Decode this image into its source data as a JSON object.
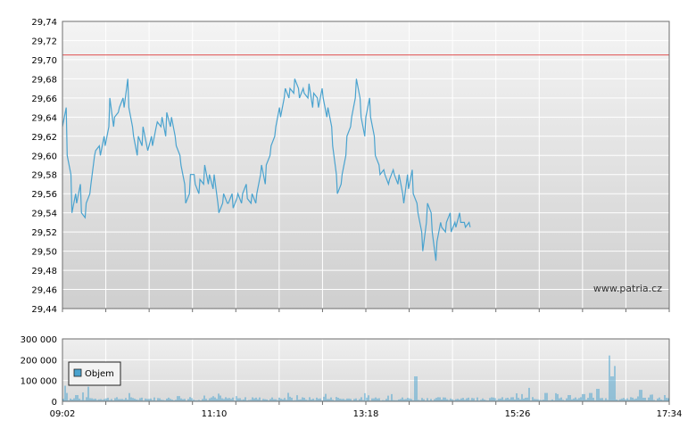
{
  "chart_data": [
    {
      "type": "line",
      "ylim": [
        29.44,
        29.74
      ],
      "y_ticks": [
        "29,74",
        "29,72",
        "29,70",
        "29,68",
        "29,66",
        "29,64",
        "29,62",
        "29,60",
        "29,58",
        "29,56",
        "29,54",
        "29,52",
        "29,50",
        "29,48",
        "29,46",
        "29,44"
      ],
      "reference_line": 29.705,
      "watermark": "www.patria.cz",
      "grid": true,
      "series": [
        {
          "color": "#4aa3cf",
          "points": [
            [
              "09:02",
              29.63
            ],
            [
              "09:04",
              29.65
            ],
            [
              "09:06",
              29.6
            ],
            [
              "09:08",
              29.58
            ],
            [
              "09:10",
              29.54
            ],
            [
              "09:12",
              29.56
            ],
            [
              "09:14",
              29.55
            ],
            [
              "09:16",
              29.57
            ],
            [
              "09:18",
              29.54
            ],
            [
              "09:20",
              29.535
            ],
            [
              "09:22",
              29.55
            ],
            [
              "09:24",
              29.56
            ],
            [
              "09:26",
              29.57
            ],
            [
              "09:28",
              29.6
            ],
            [
              "09:30",
              29.605
            ],
            [
              "09:32",
              29.61
            ],
            [
              "09:34",
              29.6
            ],
            [
              "09:36",
              29.62
            ],
            [
              "09:38",
              29.61
            ],
            [
              "09:40",
              29.63
            ],
            [
              "09:42",
              29.66
            ],
            [
              "09:44",
              29.63
            ],
            [
              "09:46",
              29.64
            ],
            [
              "09:48",
              29.645
            ],
            [
              "09:50",
              29.65
            ],
            [
              "09:52",
              29.66
            ],
            [
              "09:54",
              29.65
            ],
            [
              "09:56",
              29.68
            ],
            [
              "09:58",
              29.65
            ],
            [
              "10:00",
              29.63
            ],
            [
              "10:02",
              29.62
            ],
            [
              "10:04",
              29.6
            ],
            [
              "10:06",
              29.62
            ],
            [
              "10:08",
              29.61
            ],
            [
              "10:10",
              29.63
            ],
            [
              "10:12",
              29.61
            ],
            [
              "10:14",
              29.605
            ],
            [
              "10:16",
              29.62
            ],
            [
              "10:18",
              29.61
            ],
            [
              "10:20",
              29.63
            ],
            [
              "10:22",
              29.635
            ],
            [
              "10:24",
              29.63
            ],
            [
              "10:26",
              29.64
            ],
            [
              "10:28",
              29.62
            ],
            [
              "10:30",
              29.645
            ],
            [
              "10:32",
              29.63
            ],
            [
              "10:34",
              29.64
            ],
            [
              "10:36",
              29.62
            ],
            [
              "10:38",
              29.61
            ],
            [
              "10:40",
              29.6
            ],
            [
              "10:42",
              29.59
            ],
            [
              "10:44",
              29.57
            ],
            [
              "10:46",
              29.55
            ],
            [
              "10:48",
              29.56
            ],
            [
              "10:50",
              29.58
            ],
            [
              "10:52",
              29.58
            ],
            [
              "10:54",
              29.57
            ],
            [
              "10:56",
              29.56
            ],
            [
              "10:58",
              29.575
            ],
            [
              "11:00",
              29.57
            ],
            [
              "11:02",
              29.59
            ],
            [
              "11:04",
              29.57
            ],
            [
              "11:06",
              29.58
            ],
            [
              "11:08",
              29.565
            ],
            [
              "11:10",
              29.58
            ],
            [
              "11:12",
              29.55
            ],
            [
              "11:14",
              29.54
            ],
            [
              "11:16",
              29.55
            ],
            [
              "11:18",
              29.56
            ],
            [
              "11:20",
              29.55
            ],
            [
              "11:22",
              29.55
            ],
            [
              "11:24",
              29.56
            ],
            [
              "11:26",
              29.545
            ],
            [
              "11:28",
              29.555
            ],
            [
              "11:30",
              29.56
            ],
            [
              "11:32",
              29.55
            ],
            [
              "11:34",
              29.56
            ],
            [
              "11:36",
              29.57
            ],
            [
              "11:38",
              29.555
            ],
            [
              "11:40",
              29.55
            ],
            [
              "11:42",
              29.56
            ],
            [
              "11:44",
              29.55
            ],
            [
              "11:46",
              29.56
            ],
            [
              "11:48",
              29.58
            ],
            [
              "11:50",
              29.59
            ],
            [
              "11:52",
              29.57
            ],
            [
              "11:54",
              29.59
            ],
            [
              "11:56",
              29.6
            ],
            [
              "11:58",
              29.61
            ],
            [
              "12:00",
              29.62
            ],
            [
              "12:02",
              29.63
            ],
            [
              "12:04",
              29.65
            ],
            [
              "12:06",
              29.64
            ],
            [
              "12:08",
              29.66
            ],
            [
              "12:10",
              29.67
            ],
            [
              "12:12",
              29.66
            ],
            [
              "12:14",
              29.67
            ],
            [
              "12:16",
              29.665
            ],
            [
              "12:18",
              29.68
            ],
            [
              "12:20",
              29.67
            ],
            [
              "12:22",
              29.66
            ],
            [
              "12:24",
              29.67
            ],
            [
              "12:26",
              29.665
            ],
            [
              "12:28",
              29.66
            ],
            [
              "12:30",
              29.675
            ],
            [
              "12:32",
              29.65
            ],
            [
              "12:34",
              29.665
            ],
            [
              "12:36",
              29.66
            ],
            [
              "12:38",
              29.65
            ],
            [
              "12:40",
              29.67
            ],
            [
              "12:42",
              29.66
            ],
            [
              "12:44",
              29.64
            ],
            [
              "12:46",
              29.65
            ],
            [
              "12:48",
              29.63
            ],
            [
              "12:50",
              29.61
            ],
            [
              "12:52",
              29.58
            ],
            [
              "12:54",
              29.56
            ],
            [
              "12:56",
              29.57
            ],
            [
              "12:58",
              29.58
            ],
            [
              "13:00",
              29.6
            ],
            [
              "13:02",
              29.62
            ],
            [
              "13:04",
              29.63
            ],
            [
              "13:06",
              29.64
            ],
            [
              "13:08",
              29.66
            ],
            [
              "13:10",
              29.68
            ],
            [
              "13:12",
              29.66
            ],
            [
              "13:14",
              29.64
            ],
            [
              "13:16",
              29.62
            ],
            [
              "13:18",
              29.64
            ],
            [
              "13:20",
              29.66
            ],
            [
              "13:22",
              29.64
            ],
            [
              "13:24",
              29.62
            ],
            [
              "13:26",
              29.6
            ],
            [
              "13:28",
              29.59
            ],
            [
              "13:30",
              29.58
            ],
            [
              "13:32",
              29.585
            ],
            [
              "13:34",
              29.58
            ],
            [
              "13:36",
              29.57
            ],
            [
              "13:38",
              29.575
            ],
            [
              "13:40",
              29.585
            ],
            [
              "13:42",
              29.58
            ],
            [
              "13:44",
              29.57
            ],
            [
              "13:46",
              29.58
            ],
            [
              "13:48",
              29.56
            ],
            [
              "13:50",
              29.55
            ],
            [
              "13:52",
              29.58
            ],
            [
              "13:54",
              29.565
            ],
            [
              "13:56",
              29.585
            ],
            [
              "13:58",
              29.56
            ],
            [
              "14:00",
              29.55
            ],
            [
              "14:02",
              29.54
            ],
            [
              "14:04",
              29.52
            ],
            [
              "14:06",
              29.5
            ],
            [
              "14:08",
              29.53
            ],
            [
              "14:10",
              29.55
            ],
            [
              "14:12",
              29.54
            ],
            [
              "14:14",
              29.52
            ],
            [
              "14:16",
              29.49
            ],
            [
              "14:18",
              29.51
            ],
            [
              "14:20",
              29.53
            ],
            [
              "14:22",
              29.525
            ],
            [
              "14:24",
              29.52
            ],
            [
              "14:26",
              29.53
            ],
            [
              "14:28",
              29.54
            ],
            [
              "14:30",
              29.52
            ],
            [
              "14:32",
              29.53
            ],
            [
              "14:34",
              29.525
            ],
            [
              "14:36",
              29.54
            ],
            [
              "14:38",
              29.53
            ],
            [
              "14:40",
              29.53
            ],
            [
              "14:42",
              29.525
            ],
            [
              "14:44",
              29.53
            ],
            [
              "14:46",
              29.525
            ]
          ]
        }
      ]
    },
    {
      "type": "bar",
      "y_ticks": [
        "300 000",
        "200 000",
        "100 000",
        "0"
      ],
      "ylim": [
        0,
        300000
      ],
      "x_ticks": [
        "09:02",
        "11:10",
        "13:18",
        "15:26",
        "17:34"
      ],
      "legend": "Objem",
      "legend_position": "top-left",
      "series_color": "#4aa3cf",
      "spikes": [
        [
          "09:04",
          75000
        ],
        [
          "09:06",
          40000
        ],
        [
          "09:14",
          30000
        ],
        [
          "09:24",
          70000
        ],
        [
          "10:40",
          25000
        ],
        [
          "13:40",
          35000
        ],
        [
          "14:00",
          120000
        ],
        [
          "15:30",
          35000
        ],
        [
          "15:36",
          65000
        ],
        [
          "15:50",
          40000
        ],
        [
          "16:00",
          35000
        ],
        [
          "16:10",
          30000
        ],
        [
          "16:22",
          35000
        ],
        [
          "16:28",
          40000
        ],
        [
          "16:34",
          60000
        ],
        [
          "16:44",
          220000
        ],
        [
          "16:46",
          120000
        ],
        [
          "16:48",
          170000
        ],
        [
          "17:10",
          55000
        ],
        [
          "17:30",
          30000
        ]
      ],
      "baseline_level": 12000
    }
  ]
}
